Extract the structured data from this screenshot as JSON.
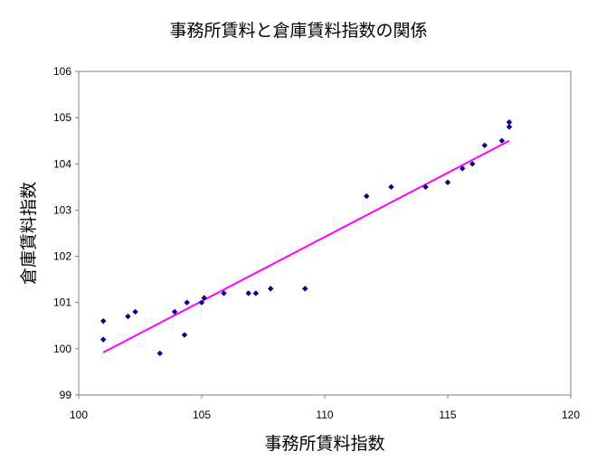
{
  "chart_data": {
    "type": "scatter",
    "title": "事務所賃料と倉庫賃料指数の関係",
    "xlabel": "事務所賃料指数",
    "ylabel": "倉庫賃料指数",
    "xlim": [
      100,
      120
    ],
    "ylim": [
      99,
      106
    ],
    "xticks": [
      100,
      105,
      110,
      115,
      120
    ],
    "yticks": [
      99,
      100,
      101,
      102,
      103,
      104,
      105,
      106
    ],
    "grid": false,
    "legend": "none",
    "point_color": "#000080",
    "trendline_color": "#ff00ff",
    "plot_background": "#ffffff",
    "plot_border_color": "#808080",
    "points": [
      {
        "x": 101.0,
        "y": 100.6
      },
      {
        "x": 101.0,
        "y": 100.2
      },
      {
        "x": 102.0,
        "y": 100.7
      },
      {
        "x": 102.3,
        "y": 100.8
      },
      {
        "x": 103.3,
        "y": 99.9
      },
      {
        "x": 103.9,
        "y": 100.8
      },
      {
        "x": 104.3,
        "y": 100.3
      },
      {
        "x": 104.4,
        "y": 101.0
      },
      {
        "x": 105.0,
        "y": 101.0
      },
      {
        "x": 105.1,
        "y": 101.1
      },
      {
        "x": 105.9,
        "y": 101.2
      },
      {
        "x": 106.9,
        "y": 101.2
      },
      {
        "x": 107.2,
        "y": 101.2
      },
      {
        "x": 107.8,
        "y": 101.3
      },
      {
        "x": 109.2,
        "y": 101.3
      },
      {
        "x": 111.7,
        "y": 103.3
      },
      {
        "x": 112.7,
        "y": 103.5
      },
      {
        "x": 114.1,
        "y": 103.5
      },
      {
        "x": 115.0,
        "y": 103.6
      },
      {
        "x": 115.6,
        "y": 103.9
      },
      {
        "x": 116.0,
        "y": 104.0
      },
      {
        "x": 116.5,
        "y": 104.4
      },
      {
        "x": 117.2,
        "y": 104.5
      },
      {
        "x": 117.5,
        "y": 104.8
      },
      {
        "x": 117.5,
        "y": 104.9
      }
    ],
    "trendline": {
      "x": [
        101.0,
        117.5
      ],
      "y": [
        99.92,
        104.5
      ]
    }
  }
}
